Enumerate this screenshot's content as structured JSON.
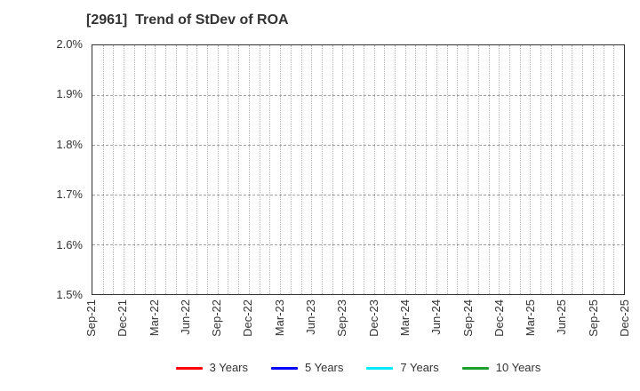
{
  "chart_data": {
    "type": "line",
    "title": "[2961]  Trend of StDev of ROA",
    "xlabel": "",
    "ylabel": "",
    "ylim": [
      1.5,
      2.0
    ],
    "y_ticks": [
      {
        "value": 2.0,
        "label": "2.0%"
      },
      {
        "value": 1.9,
        "label": "1.9%"
      },
      {
        "value": 1.8,
        "label": "1.8%"
      },
      {
        "value": 1.7,
        "label": "1.7%"
      },
      {
        "value": 1.6,
        "label": "1.6%"
      },
      {
        "value": 1.5,
        "label": "1.5%"
      }
    ],
    "x_tick_labels": [
      "Sep-21",
      "Dec-21",
      "Mar-22",
      "Jun-22",
      "Sep-22",
      "Dec-22",
      "Mar-23",
      "Jun-23",
      "Sep-23",
      "Dec-23",
      "Mar-24",
      "Jun-24",
      "Sep-24",
      "Dec-24",
      "Mar-25",
      "Jun-25",
      "Sep-25",
      "Dec-25"
    ],
    "n_months": 51,
    "x_label_every_months": 3,
    "grid": true,
    "grid_color": "#b3b3b3",
    "axis_color": "#333333",
    "legend_position": "bottom",
    "plot_is_empty": true,
    "series": [
      {
        "name": "3 Years",
        "color": "#ff0000",
        "values": []
      },
      {
        "name": "5 Years",
        "color": "#0000ff",
        "values": []
      },
      {
        "name": "7 Years",
        "color": "#00eaff",
        "values": []
      },
      {
        "name": "10 Years",
        "color": "#1c9e2c",
        "values": []
      }
    ]
  }
}
